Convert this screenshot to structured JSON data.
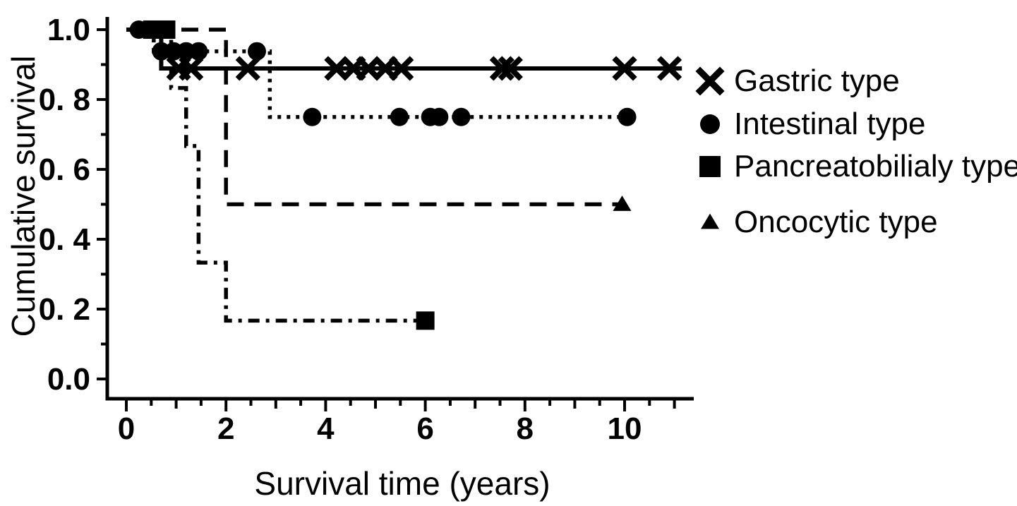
{
  "colors": {
    "foreground": "#000000",
    "background": "#ffffff"
  },
  "chart_data": {
    "type": "line",
    "subtype": "kaplan-meier-step",
    "title": "",
    "xlabel": "Survival time (years)",
    "ylabel": "Cumulative survival",
    "xlim": [
      0,
      11.4
    ],
    "ylim": [
      0.0,
      1.05
    ],
    "grid": false,
    "legend_position": "right",
    "x_major_ticks": [
      0,
      2,
      4,
      6,
      8,
      10
    ],
    "x_tick_labels": [
      "0",
      "2",
      "4",
      "6",
      "8",
      "10"
    ],
    "x_minor_tick_step": 0.5,
    "y_major_ticks": [
      1.0,
      0.8,
      0.6,
      0.4,
      0.2,
      0.0
    ],
    "y_tick_labels": [
      "1.0",
      "0. 8",
      "0. 6",
      "0. 4",
      "0. 2",
      "0.0"
    ],
    "y_minor_ticks": [
      0.9,
      0.7,
      0.5,
      0.3,
      0.1
    ],
    "series": [
      {
        "name": "Gastric type",
        "marker": "x",
        "line_style": "solid",
        "final_survival": 0.889,
        "steps": [
          [
            0,
            1.0
          ],
          [
            0.7,
            1.0
          ],
          [
            0.7,
            0.889
          ],
          [
            11.15,
            0.889
          ]
        ],
        "marks": [
          [
            1.05,
            0.889
          ],
          [
            1.3,
            0.889
          ],
          [
            2.44,
            0.889
          ],
          [
            4.22,
            0.889
          ],
          [
            4.56,
            0.889
          ],
          [
            4.86,
            0.889
          ],
          [
            5.2,
            0.889
          ],
          [
            5.52,
            0.889
          ],
          [
            7.54,
            0.889
          ],
          [
            7.71,
            0.889
          ],
          [
            10.0,
            0.889
          ],
          [
            10.9,
            0.889
          ]
        ]
      },
      {
        "name": "Intestinal type",
        "marker": "circle",
        "line_style": "dotted",
        "final_survival": 0.75,
        "steps": [
          [
            0,
            1.0
          ],
          [
            0.55,
            1.0
          ],
          [
            0.55,
            0.938
          ],
          [
            2.88,
            0.938
          ],
          [
            2.88,
            0.75
          ],
          [
            10.2,
            0.75
          ]
        ],
        "marks": [
          [
            0.25,
            1.0
          ],
          [
            0.7,
            0.938
          ],
          [
            0.95,
            0.938
          ],
          [
            1.2,
            0.938
          ],
          [
            1.45,
            0.938
          ],
          [
            2.62,
            0.938
          ],
          [
            3.73,
            0.75
          ],
          [
            5.48,
            0.75
          ],
          [
            6.1,
            0.75
          ],
          [
            6.28,
            0.75
          ],
          [
            6.72,
            0.75
          ],
          [
            10.05,
            0.75
          ]
        ]
      },
      {
        "name": "Pancreatobilialy type",
        "marker": "square",
        "line_style": "dashdot",
        "final_survival": 0.167,
        "steps": [
          [
            0,
            1.0
          ],
          [
            0.9,
            1.0
          ],
          [
            0.9,
            0.833
          ],
          [
            1.2,
            0.833
          ],
          [
            1.2,
            0.667
          ],
          [
            1.45,
            0.667
          ],
          [
            1.45,
            0.333
          ],
          [
            2.0,
            0.333
          ],
          [
            2.0,
            0.167
          ],
          [
            6.0,
            0.167
          ]
        ],
        "marks": [
          [
            0.52,
            1.0
          ],
          [
            0.8,
            1.0
          ],
          [
            6.0,
            0.167
          ]
        ]
      },
      {
        "name": "Oncocytic type",
        "marker": "triangle",
        "line_style": "dashed",
        "final_survival": 0.5,
        "steps": [
          [
            0,
            1.0
          ],
          [
            2.0,
            1.0
          ],
          [
            2.0,
            0.5
          ],
          [
            9.95,
            0.5
          ]
        ],
        "marks": [
          [
            9.95,
            0.5
          ]
        ]
      }
    ]
  },
  "legend": {
    "items": [
      {
        "label": "Gastric type",
        "marker": "x"
      },
      {
        "label": "Intestinal type",
        "marker": "circle"
      },
      {
        "label": "Pancreatobilialy type",
        "marker": "square"
      },
      {
        "label": "Oncocytic type",
        "marker": "triangle"
      }
    ]
  }
}
